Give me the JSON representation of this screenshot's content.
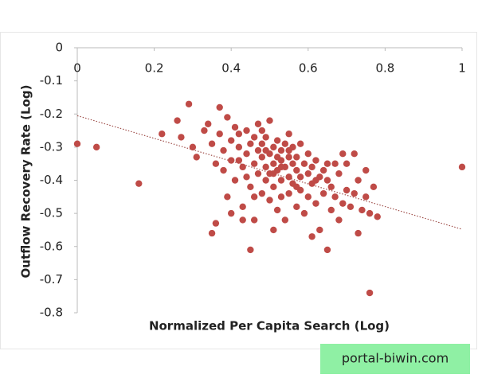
{
  "chart_data": {
    "type": "scatter",
    "xlabel": "Normalized Per Capita Search (Log)",
    "ylabel": "Outflow Recovery Rate (Log)",
    "xlim": [
      0,
      1
    ],
    "xticks": [
      0,
      0.2,
      0.4,
      0.6,
      0.8,
      1
    ],
    "ylim": [
      -0.8,
      0
    ],
    "yticks": [
      0,
      -0.1,
      -0.2,
      -0.3,
      -0.4,
      -0.5,
      -0.6,
      -0.7,
      -0.8
    ],
    "color": "#bf4b47",
    "trendline": {
      "x": [
        0,
        1
      ],
      "values": [
        -0.205,
        -0.548
      ],
      "color": "#a0504c"
    },
    "x": [
      0,
      0.05,
      0.16,
      1,
      0.76,
      0.45,
      0.29,
      0.37,
      0.22,
      0.26,
      0.35,
      0.36,
      0.65,
      0.76,
      0.78,
      0.61,
      0.73,
      0.27,
      0.3,
      0.31,
      0.33,
      0.34,
      0.35,
      0.36,
      0.37,
      0.38,
      0.38,
      0.39,
      0.39,
      0.4,
      0.4,
      0.41,
      0.41,
      0.42,
      0.42,
      0.43,
      0.43,
      0.44,
      0.44,
      0.45,
      0.45,
      0.46,
      0.46,
      0.46,
      0.47,
      0.47,
      0.47,
      0.48,
      0.48,
      0.48,
      0.49,
      0.49,
      0.49,
      0.5,
      0.5,
      0.5,
      0.5,
      0.51,
      0.51,
      0.51,
      0.51,
      0.52,
      0.52,
      0.52,
      0.52,
      0.53,
      0.53,
      0.53,
      0.53,
      0.54,
      0.54,
      0.54,
      0.55,
      0.55,
      0.55,
      0.55,
      0.56,
      0.56,
      0.56,
      0.57,
      0.57,
      0.57,
      0.58,
      0.58,
      0.58,
      0.59,
      0.59,
      0.6,
      0.6,
      0.6,
      0.61,
      0.61,
      0.62,
      0.62,
      0.63,
      0.63,
      0.64,
      0.64,
      0.65,
      0.65,
      0.66,
      0.66,
      0.67,
      0.68,
      0.68,
      0.69,
      0.69,
      0.7,
      0.7,
      0.71,
      0.72,
      0.72,
      0.73,
      0.74,
      0.75,
      0.75,
      0.77,
      0.42,
      0.44,
      0.48,
      0.51,
      0.53,
      0.49,
      0.55,
      0.46,
      0.4,
      0.43,
      0.57,
      0.62,
      0.67
    ],
    "values": [
      -0.29,
      -0.3,
      -0.41,
      -0.36,
      -0.74,
      -0.61,
      -0.17,
      -0.18,
      -0.26,
      -0.22,
      -0.56,
      -0.53,
      -0.61,
      -0.5,
      -0.51,
      -0.57,
      -0.56,
      -0.27,
      -0.3,
      -0.33,
      -0.25,
      -0.23,
      -0.29,
      -0.35,
      -0.26,
      -0.31,
      -0.37,
      -0.21,
      -0.45,
      -0.28,
      -0.34,
      -0.24,
      -0.4,
      -0.3,
      -0.26,
      -0.36,
      -0.48,
      -0.25,
      -0.32,
      -0.29,
      -0.42,
      -0.27,
      -0.35,
      -0.52,
      -0.31,
      -0.38,
      -0.23,
      -0.33,
      -0.44,
      -0.29,
      -0.36,
      -0.4,
      -0.27,
      -0.32,
      -0.38,
      -0.46,
      -0.22,
      -0.3,
      -0.35,
      -0.42,
      -0.55,
      -0.33,
      -0.37,
      -0.28,
      -0.49,
      -0.34,
      -0.4,
      -0.31,
      -0.45,
      -0.36,
      -0.29,
      -0.52,
      -0.33,
      -0.39,
      -0.26,
      -0.44,
      -0.35,
      -0.41,
      -0.3,
      -0.37,
      -0.48,
      -0.33,
      -0.39,
      -0.29,
      -0.43,
      -0.35,
      -0.5,
      -0.38,
      -0.32,
      -0.45,
      -0.36,
      -0.41,
      -0.34,
      -0.47,
      -0.39,
      -0.55,
      -0.37,
      -0.44,
      -0.4,
      -0.35,
      -0.49,
      -0.42,
      -0.45,
      -0.38,
      -0.52,
      -0.32,
      -0.47,
      -0.43,
      -0.35,
      -0.48,
      -0.44,
      -0.32,
      -0.4,
      -0.49,
      -0.37,
      -0.45,
      -0.42,
      -0.34,
      -0.39,
      -0.25,
      -0.38,
      -0.36,
      -0.31,
      -0.31,
      -0.45,
      -0.5,
      -0.52,
      -0.42,
      -0.4,
      -0.35
    ]
  },
  "watermark": "portal-biwin.com"
}
